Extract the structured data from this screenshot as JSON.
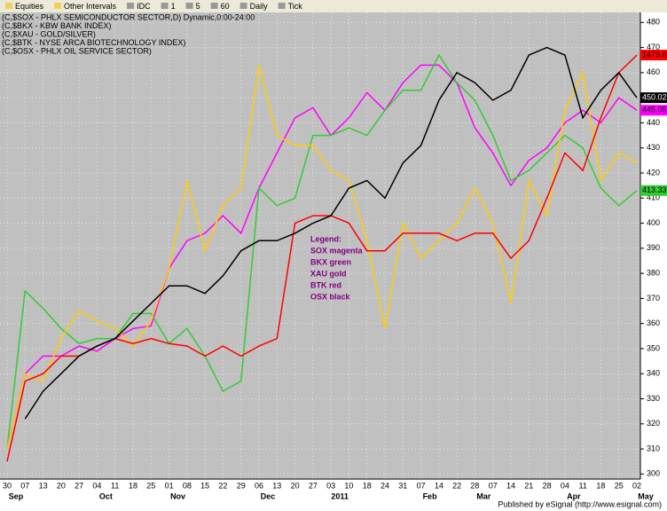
{
  "toolbar": {
    "items": [
      "Equities",
      "Other Intervals",
      "IDC",
      "1",
      "5",
      "60",
      "Daily",
      "Tick"
    ]
  },
  "chart_data": {
    "type": "line",
    "header_lines": [
      "(C,$SOX - PHLX SEMICONDUCTOR SECTOR,D) Dynamic,0:00-24:00",
      "(C,$BKX - KBW BANK INDEX)",
      "(C,$XAU - GOLD/SILVER)",
      "(C,$BTK - NYSE ARCA BIOTECHNOLOGY INDEX)",
      "(C,$OSX - PHLX OIL SERVICE SECTOR)"
    ],
    "legend_title": "Legend:",
    "legend_lines": [
      "SOX magenta",
      "BKX green",
      "XAU gold",
      "BTK red",
      "OSX black"
    ],
    "categories": [
      "30",
      "07",
      "13",
      "20",
      "27",
      "04",
      "11",
      "18",
      "25",
      "01",
      "08",
      "15",
      "22",
      "29",
      "06",
      "13",
      "20",
      "27",
      "03",
      "10",
      "18",
      "24",
      "31",
      "07",
      "14",
      "22",
      "28",
      "07",
      "14",
      "21",
      "28",
      "04",
      "11",
      "18",
      "25",
      "02"
    ],
    "month_labels": [
      {
        "label": "Sep",
        "category": 0
      },
      {
        "label": "Oct",
        "category": 5
      },
      {
        "label": "Nov",
        "category": 9
      },
      {
        "label": "Dec",
        "category": 14
      },
      {
        "label": "2011",
        "category": 18
      },
      {
        "label": "Feb",
        "category": 23
      },
      {
        "label": "Mar",
        "category": 26
      },
      {
        "label": "Apr",
        "category": 31
      },
      {
        "label": "May",
        "category": 35
      }
    ],
    "series": [
      {
        "name": "SOX",
        "color": "#ff00ff",
        "last_label": "445.05",
        "values": [
          310,
          340,
          347,
          347,
          351,
          349,
          354,
          358,
          359,
          382,
          393,
          396,
          403,
          396,
          414,
          428,
          442,
          446,
          435,
          442,
          452,
          445,
          456,
          463,
          463,
          456,
          438,
          428,
          415,
          425,
          430,
          440,
          445,
          440,
          450,
          445
        ]
      },
      {
        "name": "BKX",
        "color": "#33cc33",
        "last_label": "413.33",
        "values": [
          310,
          373,
          366,
          358,
          352,
          354,
          354,
          364,
          364,
          352,
          358,
          347,
          333,
          337,
          414,
          407,
          410,
          435,
          435,
          438,
          435,
          445,
          453,
          453,
          467,
          456,
          449,
          435,
          417,
          421,
          428,
          435,
          430,
          414,
          407,
          413
        ]
      },
      {
        "name": "XAU",
        "color": "#ffcc00",
        "values": [
          310,
          340,
          337,
          354,
          365,
          361,
          358,
          351,
          361,
          382,
          417,
          389,
          407,
          414,
          463,
          435,
          431,
          431,
          421,
          417,
          393,
          358,
          400,
          386,
          393,
          400,
          414,
          400,
          368,
          417,
          403,
          445,
          460,
          417,
          428,
          424
        ]
      },
      {
        "name": "BTK",
        "color": "#ff0000",
        "last_label": "1479.68",
        "values": [
          305,
          337,
          340,
          347,
          347,
          351,
          354,
          352,
          354,
          352,
          351,
          347,
          351,
          347,
          351,
          354,
          400,
          403,
          403,
          400,
          389,
          389,
          396,
          396,
          396,
          393,
          396,
          396,
          386,
          393,
          410,
          428,
          421,
          442,
          460,
          467
        ]
      },
      {
        "name": "OSX",
        "color": "#000000",
        "last_label": "450.02",
        "values": [
          null,
          322,
          333,
          340,
          347,
          351,
          354,
          361,
          368,
          375,
          375,
          372,
          379,
          389,
          393,
          393,
          396,
          400,
          403,
          414,
          417,
          410,
          424,
          431,
          449,
          460,
          456,
          449,
          453,
          467,
          470,
          467,
          442,
          453,
          460,
          450
        ]
      }
    ],
    "ylim": [
      298,
      484
    ],
    "yticks": [
      300,
      310,
      320,
      330,
      340,
      350,
      360,
      370,
      380,
      390,
      400,
      410,
      420,
      430,
      440,
      450,
      460,
      470,
      480
    ],
    "grid": true
  },
  "footer": "Published by eSignal (http://www.esignal.com)"
}
